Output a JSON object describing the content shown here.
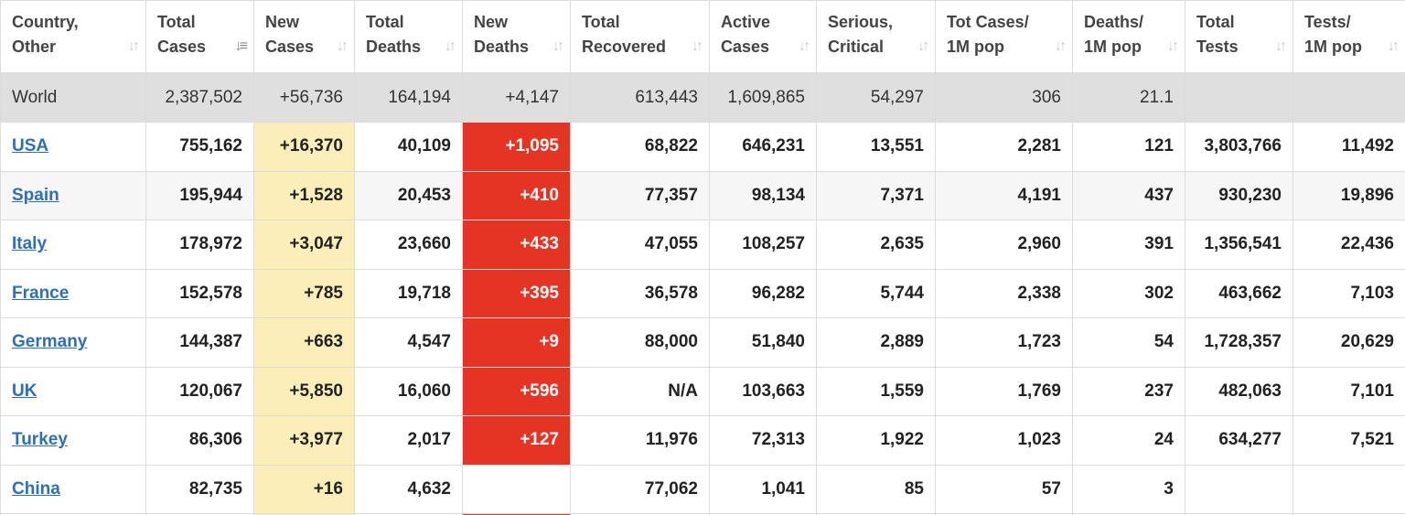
{
  "columns": [
    {
      "line1": "Country,",
      "line2": "Other",
      "sort_icon": "sort-arrows-icon"
    },
    {
      "line1": "Total",
      "line2": "Cases",
      "sort_icon": "sort-descending-icon"
    },
    {
      "line1": "New",
      "line2": "Cases",
      "sort_icon": "sort-arrows-icon"
    },
    {
      "line1": "Total",
      "line2": "Deaths",
      "sort_icon": "sort-arrows-icon"
    },
    {
      "line1": "New",
      "line2": "Deaths",
      "sort_icon": "sort-arrows-icon"
    },
    {
      "line1": "Total",
      "line2": "Recovered",
      "sort_icon": "sort-arrows-icon"
    },
    {
      "line1": "Active",
      "line2": "Cases",
      "sort_icon": "sort-arrows-icon"
    },
    {
      "line1": "Serious,",
      "line2": "Critical",
      "sort_icon": "sort-arrows-icon"
    },
    {
      "line1": "Tot Cases/",
      "line2": "1M pop",
      "sort_icon": "sort-arrows-icon"
    },
    {
      "line1": "Deaths/",
      "line2": "1M pop",
      "sort_icon": "sort-arrows-icon"
    },
    {
      "line1": "Total",
      "line2": "Tests",
      "sort_icon": "sort-arrows-icon"
    },
    {
      "line1": "Tests/",
      "line2": "1M pop",
      "sort_icon": "sort-arrows-icon"
    }
  ],
  "world": [
    "World",
    "2,387,502",
    "+56,736",
    "164,194",
    "+4,147",
    "613,443",
    "1,609,865",
    "54,297",
    "306",
    "21.1",
    "",
    ""
  ],
  "rows": [
    [
      "USA",
      "755,162",
      "+16,370",
      "40,109",
      "+1,095",
      "68,822",
      "646,231",
      "13,551",
      "2,281",
      "121",
      "3,803,766",
      "11,492"
    ],
    [
      "Spain",
      "195,944",
      "+1,528",
      "20,453",
      "+410",
      "77,357",
      "98,134",
      "7,371",
      "4,191",
      "437",
      "930,230",
      "19,896"
    ],
    [
      "Italy",
      "178,972",
      "+3,047",
      "23,660",
      "+433",
      "47,055",
      "108,257",
      "2,635",
      "2,960",
      "391",
      "1,356,541",
      "22,436"
    ],
    [
      "France",
      "152,578",
      "+785",
      "19,718",
      "+395",
      "36,578",
      "96,282",
      "5,744",
      "2,338",
      "302",
      "463,662",
      "7,103"
    ],
    [
      "Germany",
      "144,387",
      "+663",
      "4,547",
      "+9",
      "88,000",
      "51,840",
      "2,889",
      "1,723",
      "54",
      "1,728,357",
      "20,629"
    ],
    [
      "UK",
      "120,067",
      "+5,850",
      "16,060",
      "+596",
      "N/A",
      "103,663",
      "1,559",
      "1,769",
      "237",
      "482,063",
      "7,101"
    ],
    [
      "Turkey",
      "86,306",
      "+3,977",
      "2,017",
      "+127",
      "11,976",
      "72,313",
      "1,922",
      "1,023",
      "24",
      "634,277",
      "7,521"
    ],
    [
      "China",
      "82,735",
      "+16",
      "4,632",
      "",
      "77,062",
      "1,041",
      "85",
      "57",
      "3",
      "",
      ""
    ]
  ],
  "colors": {
    "new_cases_highlight": "#fbeeb8",
    "new_deaths_highlight": "#e53424",
    "world_row_bg": "#dfdfdf",
    "link": "#2f6fb5"
  }
}
